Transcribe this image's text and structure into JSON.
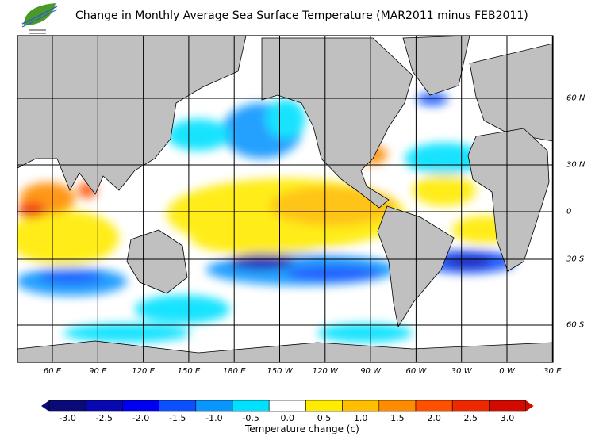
{
  "title": "Change in Monthly Average Sea Surface Temperature (MAR2011 minus FEB2011)",
  "logo": "leaf-logo",
  "map": {
    "longitude_labels": [
      "60 E",
      "90 E",
      "120 E",
      "150 E",
      "180 E",
      "150 W",
      "120 W",
      "90 W",
      "60 W",
      "30 W",
      "0 W",
      "30 E"
    ],
    "latitude_labels": [
      "60 N",
      "30 N",
      "0",
      "30 S",
      "60 S"
    ],
    "land_color": "#c0c0c0"
  },
  "colorbar": {
    "title": "Temperature change  (c)",
    "ticks": [
      "-3.0",
      "-2.5",
      "-2.0",
      "-1.5",
      "-1.0",
      "-0.5",
      "0.0",
      "0.5",
      "1.0",
      "1.5",
      "2.0",
      "2.5",
      "3.0"
    ],
    "colors": [
      "#0a0a78",
      "#0808b0",
      "#0000f0",
      "#0a50ff",
      "#0a96ff",
      "#00e1ff",
      "#ffffff",
      "#ffeb00",
      "#ffbe00",
      "#ff8c00",
      "#ff5000",
      "#f02800",
      "#d20a00"
    ]
  }
}
